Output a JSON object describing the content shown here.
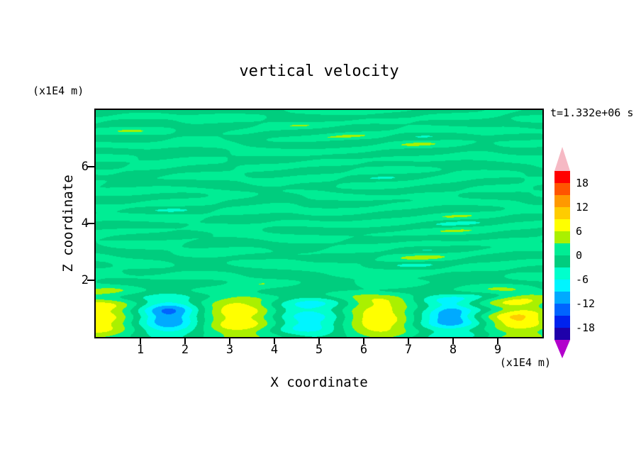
{
  "title": "vertical velocity",
  "annotations": {
    "time_label": "t=1.332e+06 s"
  },
  "axes": {
    "x_label": "X coordinate",
    "y_label": "Z coordinate",
    "x_unit": "(x1E4 m)",
    "y_unit": "(x1E4 m)",
    "x_ticks": [
      1,
      2,
      3,
      4,
      5,
      6,
      7,
      8,
      9
    ],
    "y_ticks": [
      2,
      4,
      6
    ],
    "x_range": [
      0,
      10
    ],
    "z_range": [
      0,
      8
    ]
  },
  "colorbar": {
    "labels": [
      "18",
      "12",
      "6",
      "0",
      "-6",
      "-12",
      "-18"
    ]
  },
  "chart_data": {
    "type": "heatmap",
    "title": "vertical velocity",
    "xlabel": "X coordinate (x1E4 m)",
    "ylabel": "Z coordinate (x1E4 m)",
    "time_annotation": "t=1.332e+06 s",
    "x_range": [
      0,
      10
    ],
    "z_range": [
      0,
      8
    ],
    "levels": [
      -21,
      -18,
      -15,
      -12,
      -9,
      -6,
      -3,
      0,
      3,
      6,
      9,
      12,
      15,
      18,
      21
    ],
    "colorbar_tick_labels": [
      18,
      12,
      6,
      0,
      -6,
      -12,
      -18
    ],
    "palette": [
      "#1e00aa",
      "#0022ee",
      "#0064ff",
      "#00aaff",
      "#00f5ff",
      "#00ffcc",
      "#00cd7e",
      "#00ed94",
      "#aaf000",
      "#ffff00",
      "#ffcc00",
      "#ff9900",
      "#ff5500",
      "#ff0000"
    ],
    "under_color": "#b200cc",
    "over_color": "#f6b9c4",
    "legend_position": "right-colorbar",
    "grid": false,
    "field_model": {
      "wave": {
        "amplitude": 8.5,
        "wavelength": 3.15,
        "phase_x": 0.05,
        "z_center": 0.7,
        "z_sigma": 0.8,
        "cores": [
          {
            "x": 1.65,
            "z": 0.78,
            "depth": 4.3,
            "sx": 0.5,
            "sz": 0.42
          },
          {
            "x": 7.95,
            "z": 0.8,
            "depth": 3.6,
            "sx": 0.36,
            "sz": 0.33
          },
          {
            "x": 4.78,
            "z": 0.8,
            "depth": -1.2,
            "sx": 0.5,
            "sz": 0.4
          }
        ]
      },
      "noise": {
        "seed": 12,
        "count": 12,
        "kx_min": 0.12,
        "kx_max": 0.6,
        "kz_min": 1.0,
        "kz_max": 2.4,
        "rms": 1.15,
        "taper": {
          "z_low": 0.5,
          "z_high": 1.8,
          "floor": 0.5
        }
      }
    }
  }
}
